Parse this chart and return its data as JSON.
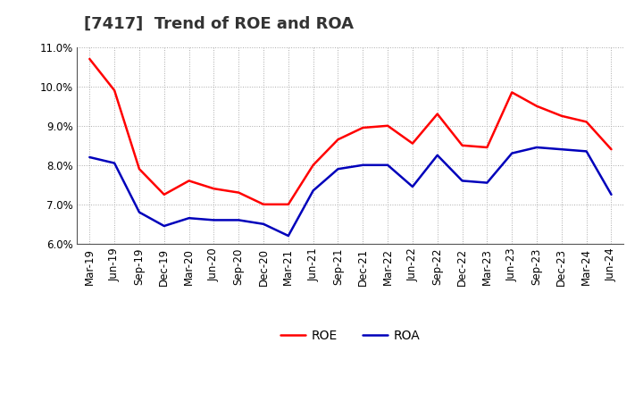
{
  "title": "[7417]  Trend of ROE and ROA",
  "labels": [
    "Mar-19",
    "Jun-19",
    "Sep-19",
    "Dec-19",
    "Mar-20",
    "Jun-20",
    "Sep-20",
    "Dec-20",
    "Mar-21",
    "Jun-21",
    "Sep-21",
    "Dec-21",
    "Mar-22",
    "Jun-22",
    "Sep-22",
    "Dec-22",
    "Mar-23",
    "Jun-23",
    "Sep-23",
    "Dec-23",
    "Mar-24",
    "Jun-24"
  ],
  "ROE": [
    10.7,
    9.9,
    7.9,
    7.25,
    7.6,
    7.4,
    7.3,
    7.0,
    7.0,
    8.0,
    8.65,
    8.95,
    9.0,
    8.55,
    9.3,
    8.5,
    8.45,
    9.85,
    9.5,
    9.25,
    9.1,
    8.4
  ],
  "ROA": [
    8.2,
    8.05,
    6.8,
    6.45,
    6.65,
    6.6,
    6.6,
    6.5,
    6.2,
    7.35,
    7.9,
    8.0,
    8.0,
    7.45,
    8.25,
    7.6,
    7.55,
    8.3,
    8.45,
    8.4,
    8.35,
    7.25
  ],
  "ROE_color": "#ff0000",
  "ROA_color": "#0000bb",
  "ylim_min": 6.0,
  "ylim_max": 11.0,
  "yticks": [
    6.0,
    7.0,
    8.0,
    9.0,
    10.0,
    11.0
  ],
  "bg_color": "#ffffff",
  "plot_bg_color": "#ffffff",
  "grid_color": "#aaaaaa",
  "title_fontsize": 13,
  "legend_fontsize": 10,
  "axis_fontsize": 8.5,
  "line_width": 1.8
}
